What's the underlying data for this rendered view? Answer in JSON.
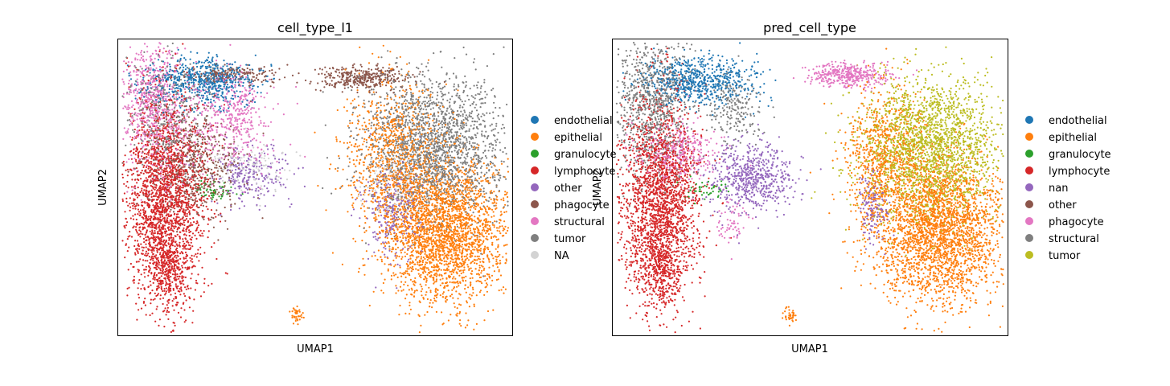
{
  "chart_data": [
    {
      "type": "scatter",
      "title": "cell_type_l1",
      "xlabel": "UMAP1",
      "ylabel": "UMAP2",
      "legend_placement": "right",
      "legend": [
        {
          "label": "endothelial",
          "color": "#1f77b4"
        },
        {
          "label": "epithelial",
          "color": "#ff7f0e"
        },
        {
          "label": "granulocyte",
          "color": "#2ca02c"
        },
        {
          "label": "lymphocyte",
          "color": "#d62728"
        },
        {
          "label": "other",
          "color": "#9467bd"
        },
        {
          "label": "phagocyte",
          "color": "#8c564b"
        },
        {
          "label": "structural",
          "color": "#e377c2"
        },
        {
          "label": "tumor",
          "color": "#7f7f7f"
        },
        {
          "label": "NA",
          "color": "#d3d3d3"
        }
      ],
      "clusters": [
        {
          "category": "lymphocyte",
          "x": 0.12,
          "y": 0.55,
          "sx": 0.05,
          "sy": 0.17,
          "n": 2200
        },
        {
          "category": "lymphocyte",
          "x": 0.12,
          "y": 0.78,
          "sx": 0.025,
          "sy": 0.06,
          "n": 250
        },
        {
          "category": "structural",
          "x": 0.09,
          "y": 0.22,
          "sx": 0.04,
          "sy": 0.12,
          "n": 700
        },
        {
          "category": "structural",
          "x": 0.26,
          "y": 0.28,
          "sx": 0.07,
          "sy": 0.08,
          "n": 300
        },
        {
          "category": "structural",
          "x": 0.31,
          "y": 0.24,
          "sx": 0.03,
          "sy": 0.07,
          "n": 200
        },
        {
          "category": "endothelial",
          "x": 0.22,
          "y": 0.14,
          "sx": 0.07,
          "sy": 0.04,
          "n": 650
        },
        {
          "category": "phagocyte",
          "x": 0.19,
          "y": 0.42,
          "sx": 0.06,
          "sy": 0.09,
          "n": 600
        },
        {
          "category": "phagocyte",
          "x": 0.29,
          "y": 0.12,
          "sx": 0.06,
          "sy": 0.015,
          "n": 200
        },
        {
          "category": "phagocyte",
          "x": 0.62,
          "y": 0.13,
          "sx": 0.06,
          "sy": 0.02,
          "n": 350
        },
        {
          "category": "other",
          "x": 0.33,
          "y": 0.46,
          "sx": 0.05,
          "sy": 0.05,
          "n": 250
        },
        {
          "category": "granulocyte",
          "x": 0.24,
          "y": 0.51,
          "sx": 0.03,
          "sy": 0.02,
          "n": 50
        },
        {
          "category": "NA",
          "x": 0.33,
          "y": 0.43,
          "sx": 0.05,
          "sy": 0.04,
          "n": 150
        },
        {
          "category": "tumor",
          "x": 0.12,
          "y": 0.25,
          "sx": 0.05,
          "sy": 0.1,
          "n": 350
        },
        {
          "category": "tumor",
          "x": 0.8,
          "y": 0.36,
          "sx": 0.09,
          "sy": 0.12,
          "n": 2000
        },
        {
          "category": "epithelial",
          "x": 0.83,
          "y": 0.65,
          "sx": 0.08,
          "sy": 0.12,
          "n": 2600
        },
        {
          "category": "epithelial",
          "x": 0.7,
          "y": 0.4,
          "sx": 0.06,
          "sy": 0.13,
          "n": 900
        },
        {
          "category": "epithelial",
          "x": 0.45,
          "y": 0.93,
          "sx": 0.008,
          "sy": 0.012,
          "n": 40
        },
        {
          "category": "other",
          "x": 0.7,
          "y": 0.58,
          "sx": 0.04,
          "sy": 0.08,
          "n": 250
        },
        {
          "category": "NA",
          "x": 0.72,
          "y": 0.5,
          "sx": 0.04,
          "sy": 0.06,
          "n": 150
        }
      ]
    },
    {
      "type": "scatter",
      "title": "pred_cell_type",
      "xlabel": "UMAP1",
      "ylabel": "UMAP2",
      "legend_placement": "right",
      "legend": [
        {
          "label": "endothelial",
          "color": "#1f77b4"
        },
        {
          "label": "epithelial",
          "color": "#ff7f0e"
        },
        {
          "label": "granulocyte",
          "color": "#2ca02c"
        },
        {
          "label": "lymphocyte",
          "color": "#d62728"
        },
        {
          "label": "nan",
          "color": "#9467bd"
        },
        {
          "label": "other",
          "color": "#8c564b"
        },
        {
          "label": "phagocyte",
          "color": "#e377c2"
        },
        {
          "label": "structural",
          "color": "#7f7f7f"
        },
        {
          "label": "tumor",
          "color": "#bcbd22"
        }
      ],
      "clusters": [
        {
          "category": "lymphocyte",
          "x": 0.12,
          "y": 0.55,
          "sx": 0.05,
          "sy": 0.17,
          "n": 2200
        },
        {
          "category": "lymphocyte",
          "x": 0.12,
          "y": 0.78,
          "sx": 0.025,
          "sy": 0.06,
          "n": 250
        },
        {
          "category": "structural",
          "x": 0.1,
          "y": 0.22,
          "sx": 0.05,
          "sy": 0.12,
          "n": 900
        },
        {
          "category": "structural",
          "x": 0.31,
          "y": 0.24,
          "sx": 0.03,
          "sy": 0.06,
          "n": 200
        },
        {
          "category": "endothelial",
          "x": 0.22,
          "y": 0.14,
          "sx": 0.07,
          "sy": 0.04,
          "n": 650
        },
        {
          "category": "phagocyte",
          "x": 0.17,
          "y": 0.38,
          "sx": 0.05,
          "sy": 0.05,
          "n": 350
        },
        {
          "category": "phagocyte",
          "x": 0.3,
          "y": 0.62,
          "sx": 0.02,
          "sy": 0.04,
          "n": 60
        },
        {
          "category": "phagocyte",
          "x": 0.6,
          "y": 0.12,
          "sx": 0.05,
          "sy": 0.02,
          "n": 400
        },
        {
          "category": "nan",
          "x": 0.35,
          "y": 0.47,
          "sx": 0.05,
          "sy": 0.06,
          "n": 600
        },
        {
          "category": "nan",
          "x": 0.66,
          "y": 0.56,
          "sx": 0.02,
          "sy": 0.06,
          "n": 150
        },
        {
          "category": "granulocyte",
          "x": 0.24,
          "y": 0.51,
          "sx": 0.03,
          "sy": 0.02,
          "n": 50
        },
        {
          "category": "tumor",
          "x": 0.8,
          "y": 0.36,
          "sx": 0.09,
          "sy": 0.12,
          "n": 2100
        },
        {
          "category": "epithelial",
          "x": 0.83,
          "y": 0.65,
          "sx": 0.08,
          "sy": 0.12,
          "n": 2700
        },
        {
          "category": "epithelial",
          "x": 0.69,
          "y": 0.4,
          "sx": 0.05,
          "sy": 0.12,
          "n": 800
        },
        {
          "category": "epithelial",
          "x": 0.45,
          "y": 0.93,
          "sx": 0.008,
          "sy": 0.012,
          "n": 40
        }
      ]
    }
  ]
}
